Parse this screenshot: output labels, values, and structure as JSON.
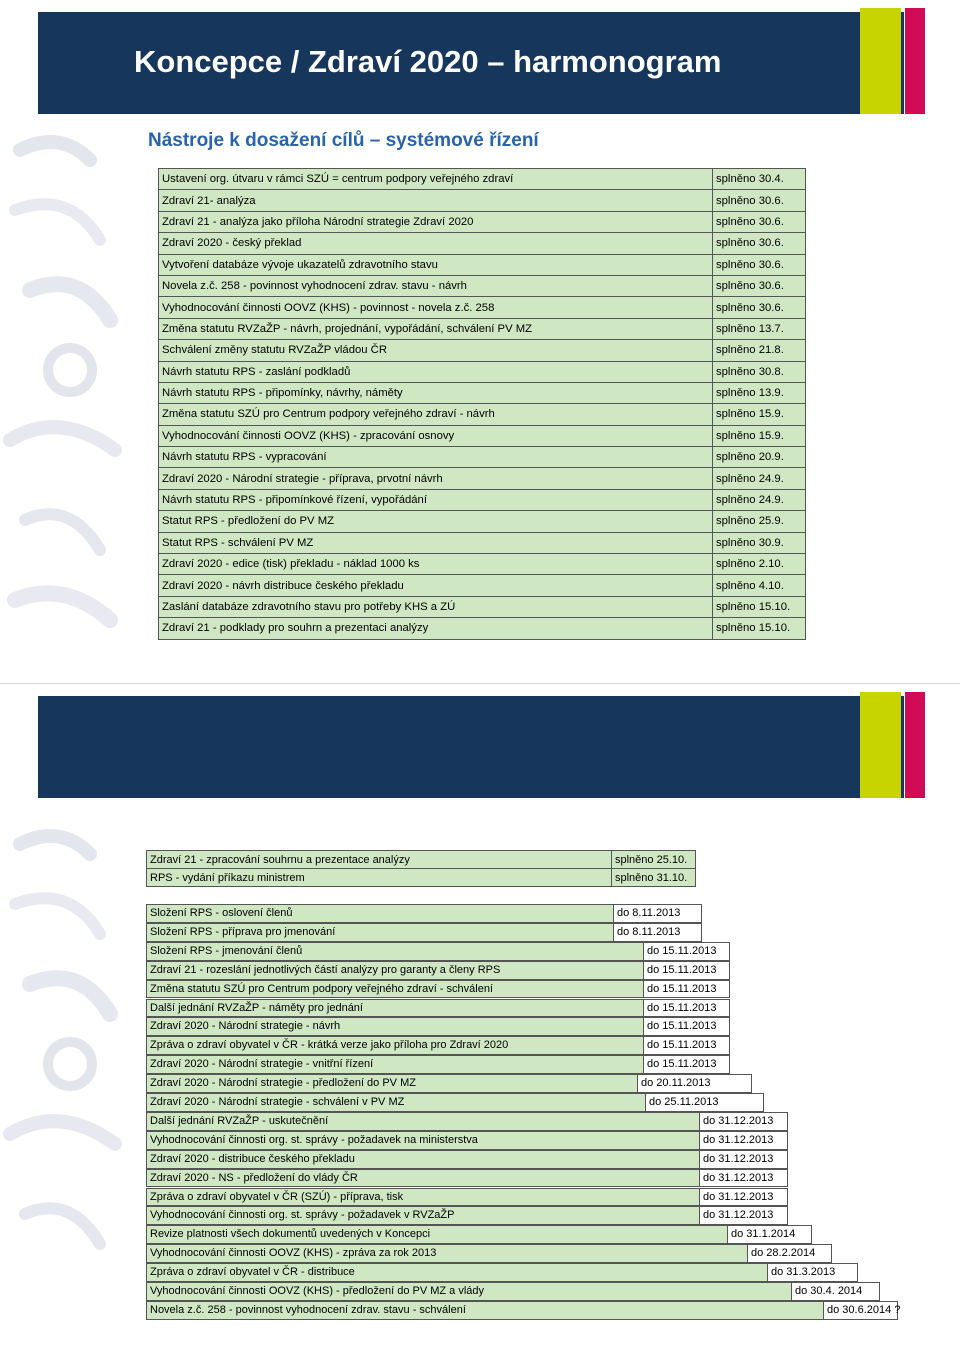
{
  "slide1": {
    "title": "Koncepce / Zdraví 2020 – harmonogram",
    "subtitle": "Nástroje k dosažení cílů – systémové řízení",
    "colors": {
      "title_bar": "#16365c",
      "accent_green": "#c8d400",
      "accent_pink": "#d10a55",
      "cell_green": "#cfe7c3",
      "subtitle": "#2a63aa"
    },
    "rows": [
      {
        "task": "Ustavení org. útvaru v rámci SZÚ = centrum podpory veřejného zdraví",
        "status": "splněno 30.4."
      },
      {
        "task": "Zdraví 21- analýza",
        "status": "splněno 30.6."
      },
      {
        "task": "Zdraví 21 - analýza jako příloha Národní strategie Zdraví 2020",
        "status": "splněno 30.6."
      },
      {
        "task": "Zdraví 2020 - český překlad",
        "status": "splněno 30.6."
      },
      {
        "task": "Vytvoření databáze vývoje ukazatelů zdravotního stavu",
        "status": "splněno 30.6."
      },
      {
        "task": "Novela z.č. 258 - povinnost vyhodnocení zdrav. stavu - návrh",
        "status": "splněno 30.6."
      },
      {
        "task": "Vyhodnocování činnosti OOVZ (KHS) - povinnost - novela z.č. 258",
        "status": "splněno 30.6."
      },
      {
        "task": "Změna statutu RVZaŽP - návrh, projednání, vypořádání, schválení PV MZ",
        "status": "splněno 13.7."
      },
      {
        "task": "Schválení změny statutu RVZaŽP vládou ČR",
        "status": "splněno 21.8."
      },
      {
        "task": "Návrh statutu RPS - zaslání podkladů",
        "status": "splněno 30.8."
      },
      {
        "task": "Návrh statutu RPS - připomínky, návrhy, náměty",
        "status": "splněno 13.9."
      },
      {
        "task": "Změna statutu SZÚ pro Centrum podpory veřejného zdraví - návrh",
        "status": "splněno 15.9."
      },
      {
        "task": "Vyhodnocování činnosti OOVZ (KHS) - zpracování osnovy",
        "status": "splněno 15.9."
      },
      {
        "task": "Návrh statutu RPS - vypracování",
        "status": "splněno 20.9."
      },
      {
        "task": "Zdraví 2020 - Národní strategie - příprava, prvotní návrh",
        "status": "splněno 24.9."
      },
      {
        "task": "Návrh statutu RPS - připomínkové řízení, vypořádání",
        "status": "splněno 24.9."
      },
      {
        "task": "Statut RPS - předložení do PV MZ",
        "status": "splněno 25.9."
      },
      {
        "task": "Statut RPS - schválení PV MZ",
        "status": "splněno 30.9."
      },
      {
        "task": "Zdraví 2020 - edice (tisk) překladu - náklad 1000 ks",
        "status": "splněno 2.10."
      },
      {
        "task": "Zdraví 2020 - návrh distribuce českého překladu",
        "status": "splněno 4.10."
      },
      {
        "task": "Zaslání databáze zdravotního stavu pro potřeby KHS a ZÚ",
        "status": "splněno 15.10."
      },
      {
        "task": "Zdraví 21 - podklady pro souhrn a prezentaci analýzy",
        "status": "splněno 15.10."
      }
    ]
  },
  "slide2": {
    "done_rows": [
      {
        "task": "Zdraví 21 - zpracování souhrnu a prezentace analýzy",
        "status": "splněno 25.10."
      },
      {
        "task": "RPS - vydání příkazu ministrem",
        "status": "splněno 31.10."
      }
    ],
    "planned_rows": [
      {
        "task": "Složení RPS - oslovení členů",
        "deadline": "do 8.11.2013"
      },
      {
        "task": "Složení RPS - příprava pro jmenování",
        "deadline": "do 8.11.2013"
      },
      {
        "task": "Složení RPS - jmenování členů",
        "deadline": "do 15.11.2013"
      },
      {
        "task": "Zdraví 21 - rozeslání jednotlivých částí analýzy pro garanty a členy RPS",
        "deadline": "do 15.11.2013"
      },
      {
        "task": "Změna statutu SZÚ pro Centrum podpory veřejného zdraví - schválení",
        "deadline": "do 15.11.2013"
      },
      {
        "task": "Další jednání RVZaŽP - náměty pro jednání",
        "deadline": "do 15.11.2013"
      },
      {
        "task": "Zdraví 2020 - Národní strategie - návrh",
        "deadline": "do 15.11.2013"
      },
      {
        "task": "Zpráva o zdraví obyvatel v ČR - krátká verze jako příloha pro Zdraví 2020",
        "deadline": "do 15.11.2013"
      },
      {
        "task": "Zdraví 2020 - Národní strategie - vnitřní řízení",
        "deadline": "do 15.11.2013"
      },
      {
        "task": "Zdraví 2020 - Národní strategie - předložení do PV MZ",
        "deadline": "do 20.11.2013"
      },
      {
        "task": "Zdraví 2020 - Národní strategie - schválení v PV MZ",
        "deadline": "do 25.11.2013"
      },
      {
        "task": "Další jednání RVZaŽP - uskutečnění",
        "deadline": "do 31.12.2013"
      },
      {
        "task": "Vyhodnocování činnosti org. st. správy - požadavek na ministerstva",
        "deadline": "do 31.12.2013"
      },
      {
        "task": "Zdraví 2020 - distribuce českého překladu",
        "deadline": "do 31.12.2013"
      },
      {
        "task": "Zdraví 2020 - NS - předložení do vlády ČR",
        "deadline": "do 31.12.2013"
      },
      {
        "task": "Zpráva o zdraví obyvatel v ČR (SZÚ) - příprava, tisk",
        "deadline": "do 31.12.2013"
      },
      {
        "task": "Vyhodnocování činnosti org. st. správy - požadavek v RVZaŽP",
        "deadline": "do 31.12.2013"
      },
      {
        "task": "Revize platnosti všech dokumentů uvedených v Koncepci",
        "deadline": "do 31.1.2014"
      },
      {
        "task": "Vyhodnocování činnosti OOVZ (KHS) - zpráva za rok 2013",
        "deadline": "do 28.2.2014"
      },
      {
        "task": "Zpráva o zdraví obyvatel v ČR - distribuce",
        "deadline": "do 31.3.2013"
      },
      {
        "task": "Vyhodnocování činnosti OOVZ (KHS) - předložení do PV MZ a vlády",
        "deadline": "do 30.4. 2014"
      },
      {
        "task": "Novela z.č. 258 - povinnost vyhodnocení zdrav. stavu - schválení",
        "deadline": "do 30.6.2014 ?"
      }
    ]
  }
}
